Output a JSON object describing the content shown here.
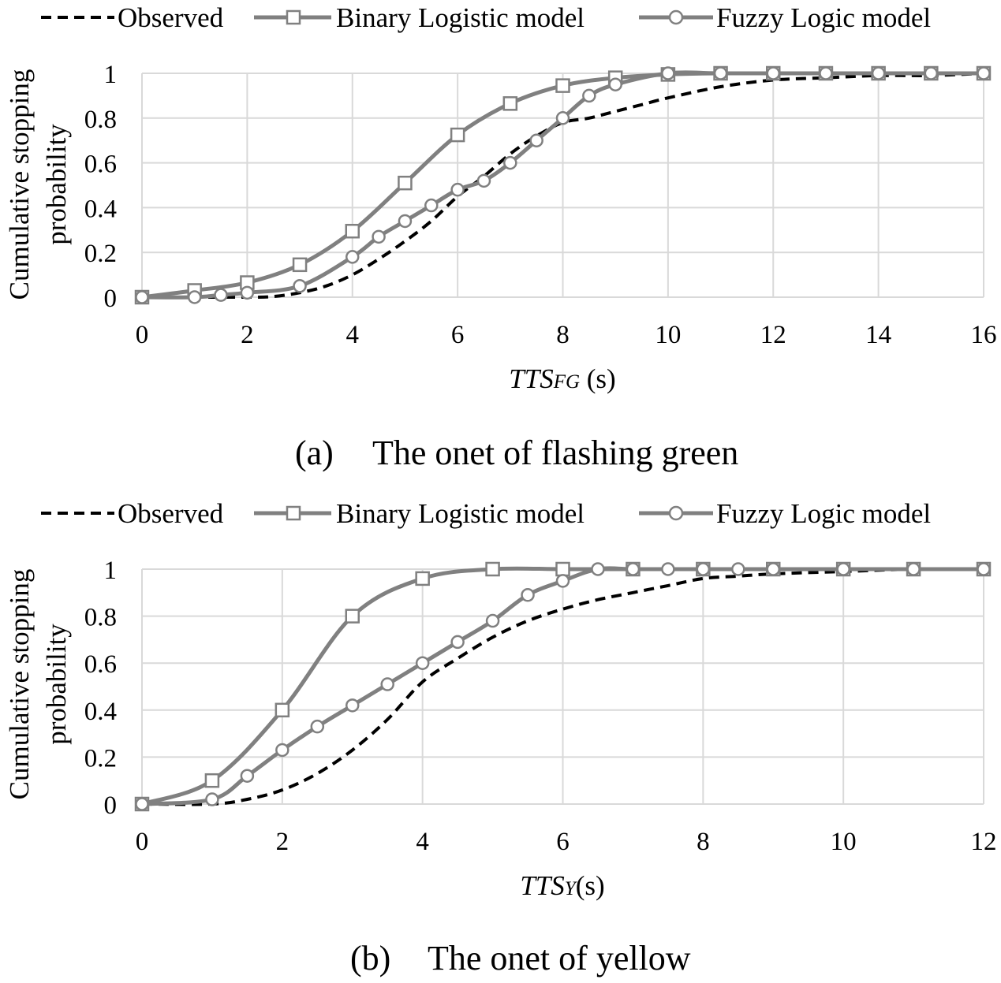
{
  "charts": [
    {
      "caption_label": "(a)",
      "caption_text": "The onet of flashing green",
      "ylabel_line1": "Cumulative stopping",
      "ylabel_line2": "probability",
      "xlabel_symbol": "TTS",
      "xlabel_subscript": "FG",
      "xlabel_unit": " (s)",
      "x_ticks": [
        "0",
        "2",
        "4",
        "6",
        "8",
        "10",
        "12",
        "14",
        "16"
      ],
      "y_ticks": [
        "0",
        "0.2",
        "0.4",
        "0.6",
        "0.8",
        "1"
      ],
      "legend": [
        "Observed",
        "Binary Logistic model",
        "Fuzzy Logic model"
      ]
    },
    {
      "caption_label": "(b)",
      "caption_text": "The onet of yellow",
      "ylabel_line1": "Cumulative stopping",
      "ylabel_line2": "probability",
      "xlabel_symbol": "TTS",
      "xlabel_subscript": "Y",
      "xlabel_unit": "(s)",
      "x_ticks": [
        "0",
        "2",
        "4",
        "6",
        "8",
        "10",
        "12"
      ],
      "y_ticks": [
        "0",
        "0.2",
        "0.4",
        "0.6",
        "0.8",
        "1"
      ],
      "legend": [
        "Observed",
        "Binary Logistic model",
        "Fuzzy Logic model"
      ]
    }
  ],
  "colors": {
    "observed": "#000000",
    "model": "#808080",
    "grid": "#d9d9d9"
  },
  "chart_data": [
    {
      "type": "line",
      "xlabel": "TTSFG (s)",
      "ylabel": "Cumulative stopping probability",
      "xlim": [
        0,
        16
      ],
      "ylim": [
        0,
        1
      ],
      "grid": true,
      "legend_position": "top",
      "series": [
        {
          "name": "Observed",
          "style": "dashed",
          "marker": "none",
          "x": [
            0,
            1,
            2,
            2.5,
            3,
            3.5,
            4,
            4.5,
            5,
            5.5,
            6,
            6.5,
            7,
            7.5,
            8,
            8.5,
            9,
            9.5,
            10,
            11,
            12,
            13,
            14,
            15,
            16
          ],
          "y": [
            0,
            0,
            0,
            0.003,
            0.02,
            0.05,
            0.1,
            0.17,
            0.25,
            0.34,
            0.45,
            0.54,
            0.64,
            0.72,
            0.78,
            0.8,
            0.83,
            0.86,
            0.89,
            0.94,
            0.97,
            0.98,
            0.99,
            0.99,
            1
          ]
        },
        {
          "name": "Binary Logistic model",
          "style": "solid",
          "marker": "square",
          "x": [
            0,
            1,
            2,
            3,
            4,
            5,
            6,
            7,
            8,
            9,
            10,
            11,
            12,
            13,
            14,
            15,
            16
          ],
          "y": [
            0,
            0.03,
            0.065,
            0.145,
            0.295,
            0.51,
            0.725,
            0.865,
            0.945,
            0.98,
            0.995,
            1,
            1,
            1,
            1,
            1,
            1
          ]
        },
        {
          "name": "Fuzzy Logic model",
          "style": "solid",
          "marker": "circle",
          "x": [
            0,
            1,
            1.5,
            2,
            3,
            4,
            4.5,
            5,
            5.5,
            6,
            6.5,
            7,
            7.5,
            8,
            8.5,
            9,
            10,
            11,
            12,
            13,
            14,
            15,
            16
          ],
          "y": [
            0,
            0,
            0.01,
            0.02,
            0.05,
            0.18,
            0.27,
            0.34,
            0.41,
            0.48,
            0.52,
            0.6,
            0.7,
            0.8,
            0.9,
            0.95,
            1,
            1,
            1,
            1,
            1,
            1,
            1
          ]
        }
      ]
    },
    {
      "type": "line",
      "xlabel": "TTSY(s)",
      "ylabel": "Cumulative stopping probability",
      "xlim": [
        0,
        12
      ],
      "ylim": [
        0,
        1
      ],
      "grid": true,
      "legend_position": "top",
      "series": [
        {
          "name": "Observed",
          "style": "dashed",
          "marker": "none",
          "x": [
            0,
            1,
            1.5,
            2,
            2.5,
            3,
            3.5,
            4,
            4.5,
            5,
            5.5,
            6,
            6.5,
            7,
            7.5,
            8,
            8.5,
            9,
            10,
            11,
            12
          ],
          "y": [
            0,
            0,
            0.02,
            0.06,
            0.13,
            0.23,
            0.36,
            0.52,
            0.62,
            0.71,
            0.78,
            0.83,
            0.87,
            0.9,
            0.93,
            0.96,
            0.97,
            0.98,
            0.99,
            1,
            1
          ]
        },
        {
          "name": "Binary Logistic model",
          "style": "solid",
          "marker": "square",
          "x": [
            0,
            1,
            2,
            3,
            4,
            5,
            6,
            7,
            8,
            9,
            10,
            11,
            12
          ],
          "y": [
            0,
            0.1,
            0.4,
            0.8,
            0.96,
            1,
            1,
            1,
            1,
            1,
            1,
            1,
            1
          ]
        },
        {
          "name": "Fuzzy Logic model",
          "style": "solid",
          "marker": "circle",
          "x": [
            0,
            1,
            1.5,
            2,
            2.5,
            3,
            3.5,
            4,
            4.5,
            5,
            5.5,
            6,
            6.5,
            7,
            7.5,
            8,
            8.5,
            9,
            10,
            11,
            12
          ],
          "y": [
            0,
            0.02,
            0.12,
            0.23,
            0.33,
            0.42,
            0.51,
            0.6,
            0.69,
            0.78,
            0.89,
            0.95,
            1,
            1,
            1,
            1,
            1,
            1,
            1,
            1,
            1
          ]
        }
      ]
    }
  ]
}
